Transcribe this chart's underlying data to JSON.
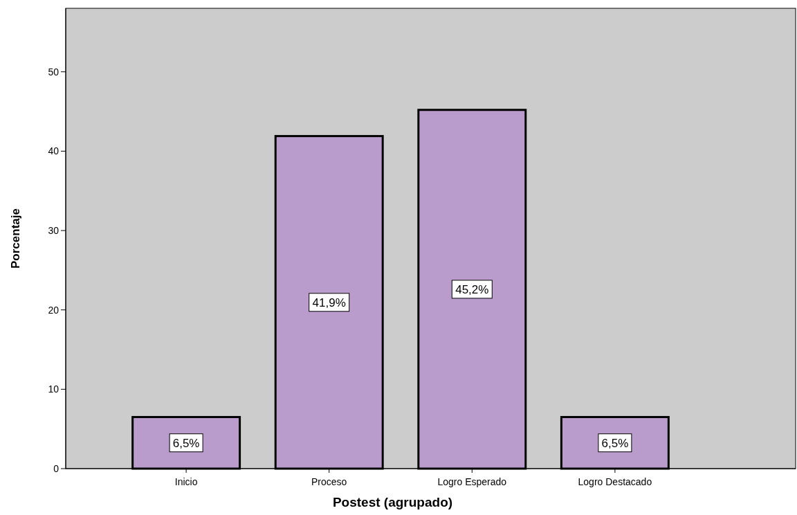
{
  "chart_data": {
    "type": "bar",
    "xlabel": "Postest (agrupado)",
    "ylabel": "Porcentaje",
    "categories": [
      "Inicio",
      "Proceso",
      "Logro Esperado",
      "Logro Destacado"
    ],
    "values": [
      6.5,
      41.9,
      45.2,
      6.5
    ],
    "color": "#b99ccb",
    "value_labels": [
      "6,5%",
      "41,9%",
      "45,2%",
      "6,5%"
    ],
    "ylim": [
      0,
      58
    ],
    "yticks": [
      0,
      10,
      20,
      30,
      40,
      50
    ],
    "grid": false
  }
}
